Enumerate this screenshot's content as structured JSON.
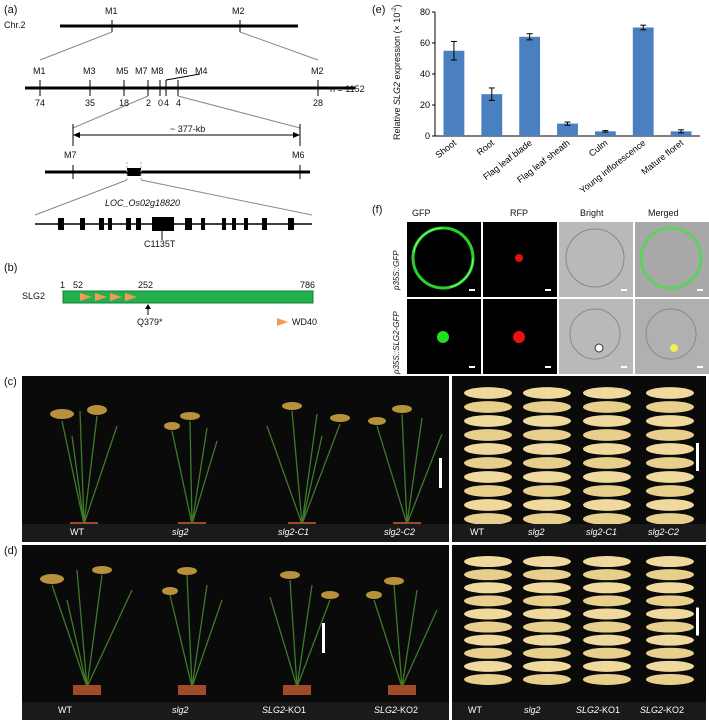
{
  "panel_labels": {
    "a": "(a)",
    "b": "(b)",
    "c": "(c)",
    "d": "(d)",
    "e": "(e)",
    "f": "(f)"
  },
  "map": {
    "chr_label": "Chr.2",
    "top_markers": [
      "M1",
      "M2"
    ],
    "fine_markers": [
      "M1",
      "M3",
      "M5",
      "M7",
      "M8",
      "M6",
      "M4",
      "M2"
    ],
    "recombinants": [
      "74",
      "35",
      "18",
      "2",
      "0",
      "4",
      "4",
      "28"
    ],
    "n_label": "n = 1152",
    "interval": "~ 377-kb",
    "interval_left": "M7",
    "interval_right": "M6",
    "gene": "LOC_Os02g18820",
    "mutation": "C1135T"
  },
  "protein": {
    "name": "SLG2",
    "pos_start": "1",
    "pos_52": "52",
    "pos_252": "252",
    "pos_end": "786",
    "mutation": "Q379*",
    "legend": "WD40"
  },
  "photo_c": {
    "plants": [
      "WT",
      "slg2",
      "slg2-C1",
      "slg2-C2"
    ],
    "grains": [
      "WT",
      "slg2",
      "slg2-C1",
      "slg2-C2"
    ]
  },
  "photo_d": {
    "plants": [
      "WT",
      "slg2",
      "SLG2-KO1",
      "SLG2-KO2"
    ],
    "grains": [
      "WT",
      "slg2",
      "SLG2-KO1",
      "SLG2-KO2"
    ]
  },
  "fluor": {
    "cols": [
      "GFP",
      "RFP",
      "Bright",
      "Merged"
    ],
    "rows": [
      "p35S::GFP",
      "p35S::SLG2-GFP"
    ]
  },
  "chart_data": {
    "type": "bar",
    "categories": [
      "Shoot",
      "Root",
      "Flag leaf blade",
      "Flag leaf sheath",
      "Culm",
      "Young inflorescence",
      "Mature floret"
    ],
    "values": [
      55,
      27,
      64,
      8,
      3,
      70,
      3
    ],
    "errors": [
      6,
      4,
      2,
      1,
      0.5,
      1.5,
      1
    ],
    "ylabel_parts": [
      "Relative ",
      "SLG2",
      " expression (× 10",
      "-2",
      ")"
    ],
    "ylim": [
      0,
      80
    ],
    "yticks": [
      "0",
      "20",
      "40",
      "60",
      "80"
    ],
    "bar_color": "#4a7fc0"
  }
}
